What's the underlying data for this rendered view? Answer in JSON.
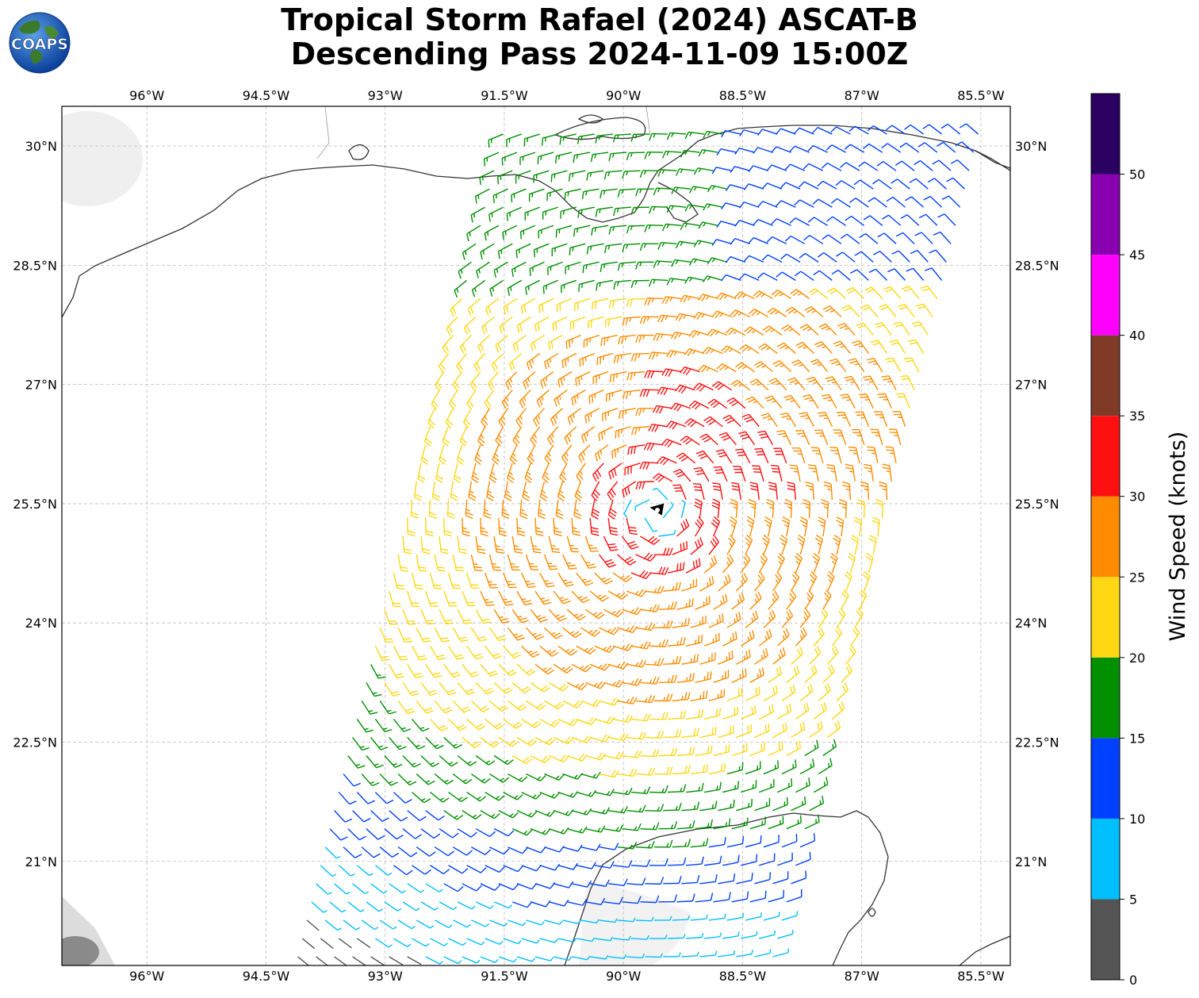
{
  "header": {
    "title_line1": "Tropical Storm Rafael (2024) ASCAT-B",
    "title_line2": "Descending Pass 2024-11-09 15:00Z",
    "logo_text": "COAPS"
  },
  "map": {
    "lon_labels": [
      "96°W",
      "94.5°W",
      "93°W",
      "91.5°W",
      "90°W",
      "88.5°W",
      "87°W",
      "85.5°W"
    ],
    "lon_values": [
      -96,
      -94.5,
      -93,
      -91.5,
      -90,
      -88.5,
      -87,
      -85.5
    ],
    "lat_labels": [
      "30°N",
      "28.5°N",
      "27°N",
      "25.5°N",
      "24°N",
      "22.5°N",
      "21°N"
    ],
    "lat_values": [
      30,
      28.5,
      27,
      25.5,
      24,
      22.5,
      21
    ],
    "extent": {
      "lon_min": -97.07,
      "lon_max": -85.13,
      "lat_min": 19.69,
      "lat_max": 30.5
    },
    "storm_center": {
      "lon": -89.6,
      "lat": 25.4
    },
    "gridlines": true,
    "coastline_color": "#333333"
  },
  "colorbar": {
    "label": "Wind Speed (knots)",
    "ticks": [
      "0",
      "5",
      "10",
      "15",
      "20",
      "25",
      "30",
      "35",
      "40",
      "45",
      "50"
    ],
    "bins": [
      {
        "min": 0,
        "max": 5,
        "color": "#555555"
      },
      {
        "min": 5,
        "max": 10,
        "color": "#00bfff"
      },
      {
        "min": 10,
        "max": 15,
        "color": "#0040ff"
      },
      {
        "min": 15,
        "max": 20,
        "color": "#009000"
      },
      {
        "min": 20,
        "max": 25,
        "color": "#ffd712"
      },
      {
        "min": 25,
        "max": 30,
        "color": "#ff8c00"
      },
      {
        "min": 30,
        "max": 35,
        "color": "#ff1010"
      },
      {
        "min": 35,
        "max": 40,
        "color": "#7f3a28"
      },
      {
        "min": 40,
        "max": 45,
        "color": "#ff00ff"
      },
      {
        "min": 45,
        "max": 50,
        "color": "#8800b0"
      },
      {
        "min": 50,
        "max": 55,
        "color": "#2a0060"
      }
    ]
  }
}
